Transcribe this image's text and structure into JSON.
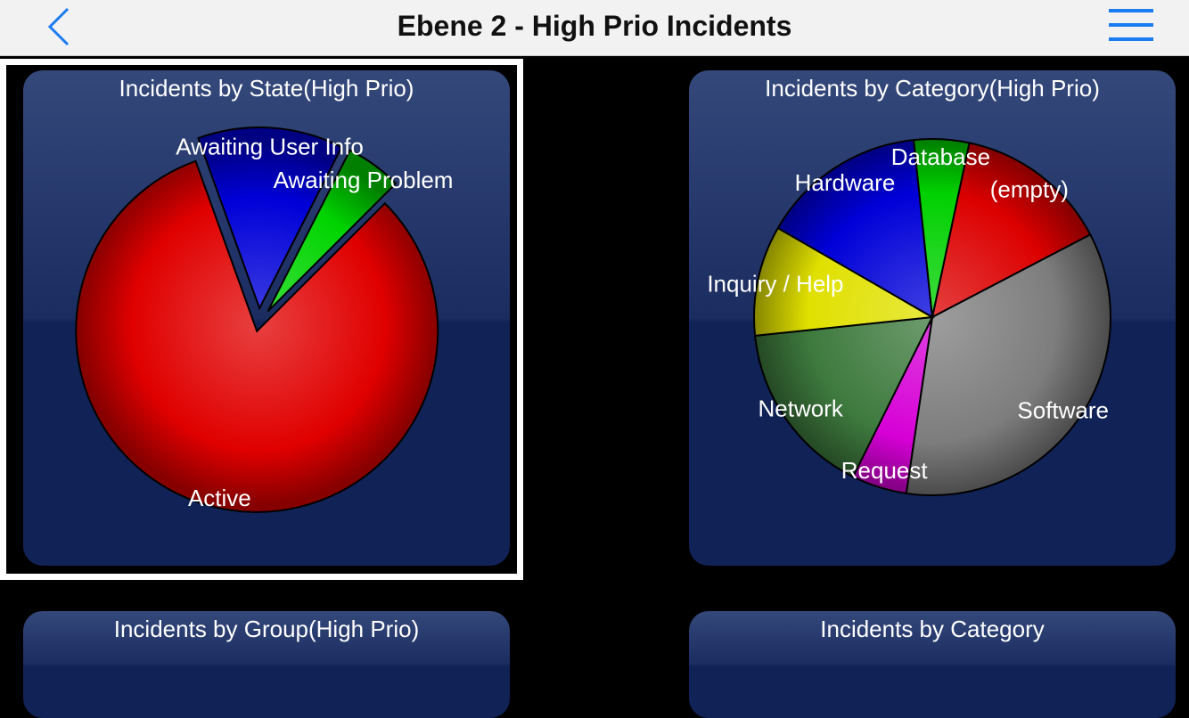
{
  "header": {
    "title": "Ebene 2 - High Prio Incidents",
    "back_icon": "chevron-left-icon",
    "menu_icon": "hamburger-menu-icon",
    "accent_color": "#1a7cf0"
  },
  "chart_data": [
    {
      "type": "pie",
      "title": "Incidents by State(High Prio)",
      "exploded": true,
      "slices": [
        {
          "label": "Active",
          "value": 82,
          "color": "#e00000"
        },
        {
          "label": "Awaiting User Info",
          "value": 13,
          "color": "#0000d8"
        },
        {
          "label": "Awaiting Problem",
          "value": 5,
          "color": "#00d400"
        }
      ]
    },
    {
      "type": "pie",
      "title": "Incidents by Category(High Prio)",
      "slices": [
        {
          "label": "(empty)",
          "value": 14,
          "color": "#dc0000"
        },
        {
          "label": "Software",
          "value": 35,
          "color": "#7d7d7d"
        },
        {
          "label": "Request",
          "value": 5,
          "color": "#d600d6"
        },
        {
          "label": "Network",
          "value": 16,
          "color": "#3e7a3e"
        },
        {
          "label": "Inquiry / Help",
          "value": 10,
          "color": "#e0e000"
        },
        {
          "label": "Hardware",
          "value": 15,
          "color": "#0000d8"
        },
        {
          "label": "Database",
          "value": 5,
          "color": "#00d000"
        }
      ]
    },
    {
      "type": "pie",
      "title": "Incidents by Group(High Prio)"
    },
    {
      "type": "pie",
      "title": "Incidents by Category"
    }
  ]
}
